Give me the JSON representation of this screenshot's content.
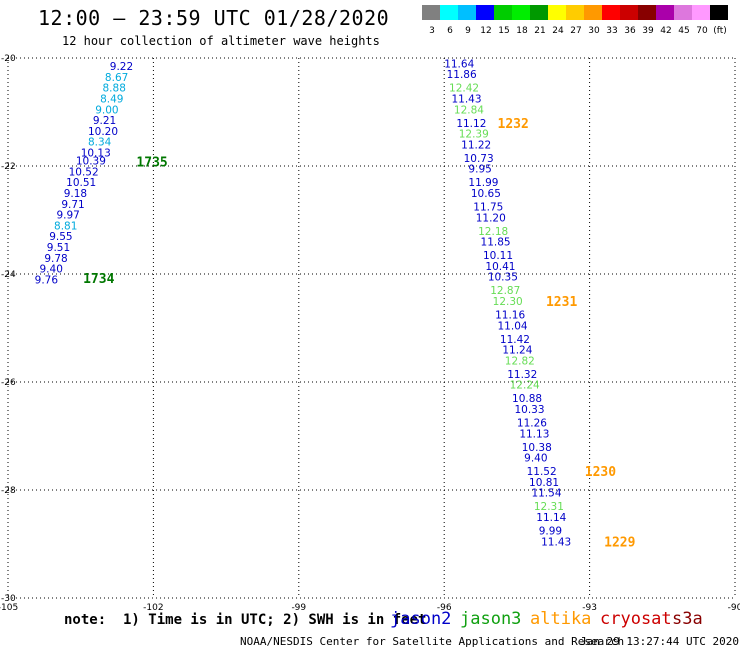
{
  "header": {
    "title": "12:00 – 23:59 UTC 01/28/2020",
    "subtitle": "12 hour collection of altimeter wave heights"
  },
  "colors": {
    "jason2": "#0000c8",
    "jason3": "#11a011",
    "jason3_light": "#66dd55",
    "altika": "#ff9900",
    "cryosat": "#cc0000",
    "s3a": "#880000",
    "cyan": "#00aadd",
    "dark_green": "#007700",
    "grid": "#000000"
  },
  "color_scale": {
    "swatches": [
      "#808080",
      "#00ffff",
      "#00bfff",
      "#0000ff",
      "#00cc00",
      "#00ee00",
      "#009900",
      "#ffff00",
      "#ffcc00",
      "#ff9900",
      "#ff0000",
      "#cc0000",
      "#880000",
      "#aa00aa",
      "#dd77dd",
      "#ff99ff",
      "#000000"
    ],
    "labels": [
      "3",
      "6",
      "9",
      "12",
      "15",
      "18",
      "21",
      "24",
      "27",
      "30",
      "33",
      "36",
      "39",
      "42",
      "45",
      "70",
      "(ft)"
    ]
  },
  "chart_data": {
    "type": "scatter",
    "title": "12:00 – 23:59 UTC 01/28/2020",
    "xlim": [
      -105,
      -90
    ],
    "ylim": [
      -30,
      -20
    ],
    "x_ticks": [
      -105,
      -102,
      -99,
      -96,
      -93,
      -90
    ],
    "x_tick_labels": [
      "-105",
      "-102",
      "-99",
      "-96",
      "-93",
      "-90"
    ],
    "y_ticks": [
      -20,
      -22,
      -24,
      -26,
      -28,
      -30
    ],
    "y_tick_labels": [
      "-20",
      "-22",
      "-24",
      "-26",
      "-28",
      "-30"
    ],
    "grid": true,
    "series": [
      {
        "points": [
          {
            "x": -102.9,
            "y": -20.15,
            "v": "9.22",
            "c": "jason2"
          },
          {
            "x": -103.0,
            "y": -20.35,
            "v": "8.67",
            "c": "cyan"
          },
          {
            "x": -103.05,
            "y": -20.55,
            "v": "8.88",
            "c": "cyan"
          },
          {
            "x": -103.1,
            "y": -20.75,
            "v": "8.49",
            "c": "cyan"
          },
          {
            "x": -103.2,
            "y": -20.95,
            "v": "9.00",
            "c": "cyan"
          },
          {
            "x": -103.25,
            "y": -21.15,
            "v": "9.21",
            "c": "jason2"
          },
          {
            "x": -103.35,
            "y": -21.35,
            "v": "10.20",
            "c": "jason2"
          },
          {
            "x": -103.35,
            "y": -21.55,
            "v": "8.34",
            "c": "cyan"
          },
          {
            "x": -103.5,
            "y": -21.75,
            "v": "10.13",
            "c": "jason2"
          },
          {
            "x": -103.6,
            "y": -21.9,
            "v": "10.39",
            "c": "jason2"
          },
          {
            "x": -103.75,
            "y": -22.1,
            "v": "10.52",
            "c": "jason2"
          },
          {
            "x": -103.8,
            "y": -22.3,
            "v": "10.51",
            "c": "jason2"
          },
          {
            "x": -103.85,
            "y": -22.5,
            "v": "9.18",
            "c": "jason2"
          },
          {
            "x": -103.9,
            "y": -22.7,
            "v": "9.71",
            "c": "jason2"
          },
          {
            "x": -104.0,
            "y": -22.9,
            "v": "9.97",
            "c": "jason2"
          },
          {
            "x": -104.05,
            "y": -23.1,
            "v": "8.81",
            "c": "cyan"
          },
          {
            "x": -104.15,
            "y": -23.3,
            "v": "9.55",
            "c": "jason2"
          },
          {
            "x": -104.2,
            "y": -23.5,
            "v": "9.51",
            "c": "jason2"
          },
          {
            "x": -104.25,
            "y": -23.7,
            "v": "9.78",
            "c": "jason2"
          },
          {
            "x": -104.35,
            "y": -23.9,
            "v": "9.40",
            "c": "jason2"
          },
          {
            "x": -104.45,
            "y": -24.1,
            "v": "9.76",
            "c": "jason2"
          },
          {
            "x": -96.0,
            "y": -20.1,
            "v": "11.64",
            "c": "jason2"
          },
          {
            "x": -95.95,
            "y": -20.3,
            "v": "11.86",
            "c": "jason2"
          },
          {
            "x": -95.9,
            "y": -20.55,
            "v": "12.42",
            "c": "jason3_light"
          },
          {
            "x": -95.85,
            "y": -20.75,
            "v": "11.43",
            "c": "jason2"
          },
          {
            "x": -95.8,
            "y": -20.95,
            "v": "12.84",
            "c": "jason3_light"
          },
          {
            "x": -95.75,
            "y": -21.2,
            "v": "11.12",
            "c": "jason2"
          },
          {
            "x": -95.7,
            "y": -21.4,
            "v": "12.39",
            "c": "jason3_light"
          },
          {
            "x": -95.65,
            "y": -21.6,
            "v": "11.22",
            "c": "jason2"
          },
          {
            "x": -95.6,
            "y": -21.85,
            "v": "10.73",
            "c": "jason2"
          },
          {
            "x": -95.5,
            "y": -22.05,
            "v": "9.95",
            "c": "jason2"
          },
          {
            "x": -95.5,
            "y": -22.3,
            "v": "11.99",
            "c": "jason2"
          },
          {
            "x": -95.45,
            "y": -22.5,
            "v": "10.65",
            "c": "jason2"
          },
          {
            "x": -95.4,
            "y": -22.75,
            "v": "11.75",
            "c": "jason2"
          },
          {
            "x": -95.35,
            "y": -22.95,
            "v": "11.20",
            "c": "jason2"
          },
          {
            "x": -95.3,
            "y": -23.2,
            "v": "12.18",
            "c": "jason3_light"
          },
          {
            "x": -95.25,
            "y": -23.4,
            "v": "11.85",
            "c": "jason2"
          },
          {
            "x": -95.2,
            "y": -23.65,
            "v": "10.11",
            "c": "jason2"
          },
          {
            "x": -95.15,
            "y": -23.85,
            "v": "10.41",
            "c": "jason2"
          },
          {
            "x": -95.1,
            "y": -24.05,
            "v": "10.35",
            "c": "jason2"
          },
          {
            "x": -95.05,
            "y": -24.3,
            "v": "12.87",
            "c": "jason3_light"
          },
          {
            "x": -95.0,
            "y": -24.5,
            "v": "12.30",
            "c": "jason3_light"
          },
          {
            "x": -94.95,
            "y": -24.75,
            "v": "11.16",
            "c": "jason2"
          },
          {
            "x": -94.9,
            "y": -24.95,
            "v": "11.04",
            "c": "jason2"
          },
          {
            "x": -94.85,
            "y": -25.2,
            "v": "11.42",
            "c": "jason2"
          },
          {
            "x": -94.8,
            "y": -25.4,
            "v": "11.24",
            "c": "jason2"
          },
          {
            "x": -94.75,
            "y": -25.6,
            "v": "12.82",
            "c": "jason3_light"
          },
          {
            "x": -94.7,
            "y": -25.85,
            "v": "11.32",
            "c": "jason2"
          },
          {
            "x": -94.65,
            "y": -26.05,
            "v": "12.24",
            "c": "jason3_light"
          },
          {
            "x": -94.6,
            "y": -26.3,
            "v": "10.88",
            "c": "jason2"
          },
          {
            "x": -94.55,
            "y": -26.5,
            "v": "10.33",
            "c": "jason2"
          },
          {
            "x": -94.5,
            "y": -26.75,
            "v": "11.26",
            "c": "jason2"
          },
          {
            "x": -94.45,
            "y": -26.95,
            "v": "11.13",
            "c": "jason2"
          },
          {
            "x": -94.4,
            "y": -27.2,
            "v": "10.38",
            "c": "jason2"
          },
          {
            "x": -94.35,
            "y": -27.4,
            "v": "9.40",
            "c": "jason2"
          },
          {
            "x": -94.3,
            "y": -27.65,
            "v": "11.52",
            "c": "jason2"
          },
          {
            "x": -94.25,
            "y": -27.85,
            "v": "10.81",
            "c": "jason2"
          },
          {
            "x": -94.2,
            "y": -28.05,
            "v": "11.54",
            "c": "jason2"
          },
          {
            "x": -94.15,
            "y": -28.3,
            "v": "12.31",
            "c": "jason3_light"
          },
          {
            "x": -94.1,
            "y": -28.5,
            "v": "11.14",
            "c": "jason2"
          },
          {
            "x": -94.05,
            "y": -28.75,
            "v": "9.99",
            "c": "jason2"
          },
          {
            "x": -94.0,
            "y": -28.95,
            "v": "11.43",
            "c": "jason2"
          }
        ]
      }
    ],
    "time_labels": [
      {
        "x": -102.35,
        "y": -21.92,
        "t": "1735",
        "c": "dark_green"
      },
      {
        "x": -103.45,
        "y": -24.07,
        "t": "1734",
        "c": "dark_green"
      },
      {
        "x": -94.9,
        "y": -21.2,
        "t": "1232",
        "c": "altika"
      },
      {
        "x": -93.9,
        "y": -24.5,
        "t": "1231",
        "c": "altika"
      },
      {
        "x": -93.1,
        "y": -27.65,
        "t": "1230",
        "c": "altika"
      },
      {
        "x": -92.7,
        "y": -28.95,
        "t": "1229",
        "c": "altika"
      }
    ]
  },
  "footer": {
    "note": "note:  1) Time is in UTC; 2) SWH is in feet",
    "legend": [
      {
        "label": "jason2",
        "c": "jason2"
      },
      {
        "label": "jason3",
        "c": "jason3"
      },
      {
        "label": "altika",
        "c": "altika"
      },
      {
        "label": "cryosat",
        "c": "cryosat"
      },
      {
        "label": "s3a",
        "c": "s3a"
      }
    ],
    "credit": "NOAA/NESDIS Center for Satellite Applications and Research",
    "timestamp": "Jan 29 13:27:44 UTC 2020"
  }
}
